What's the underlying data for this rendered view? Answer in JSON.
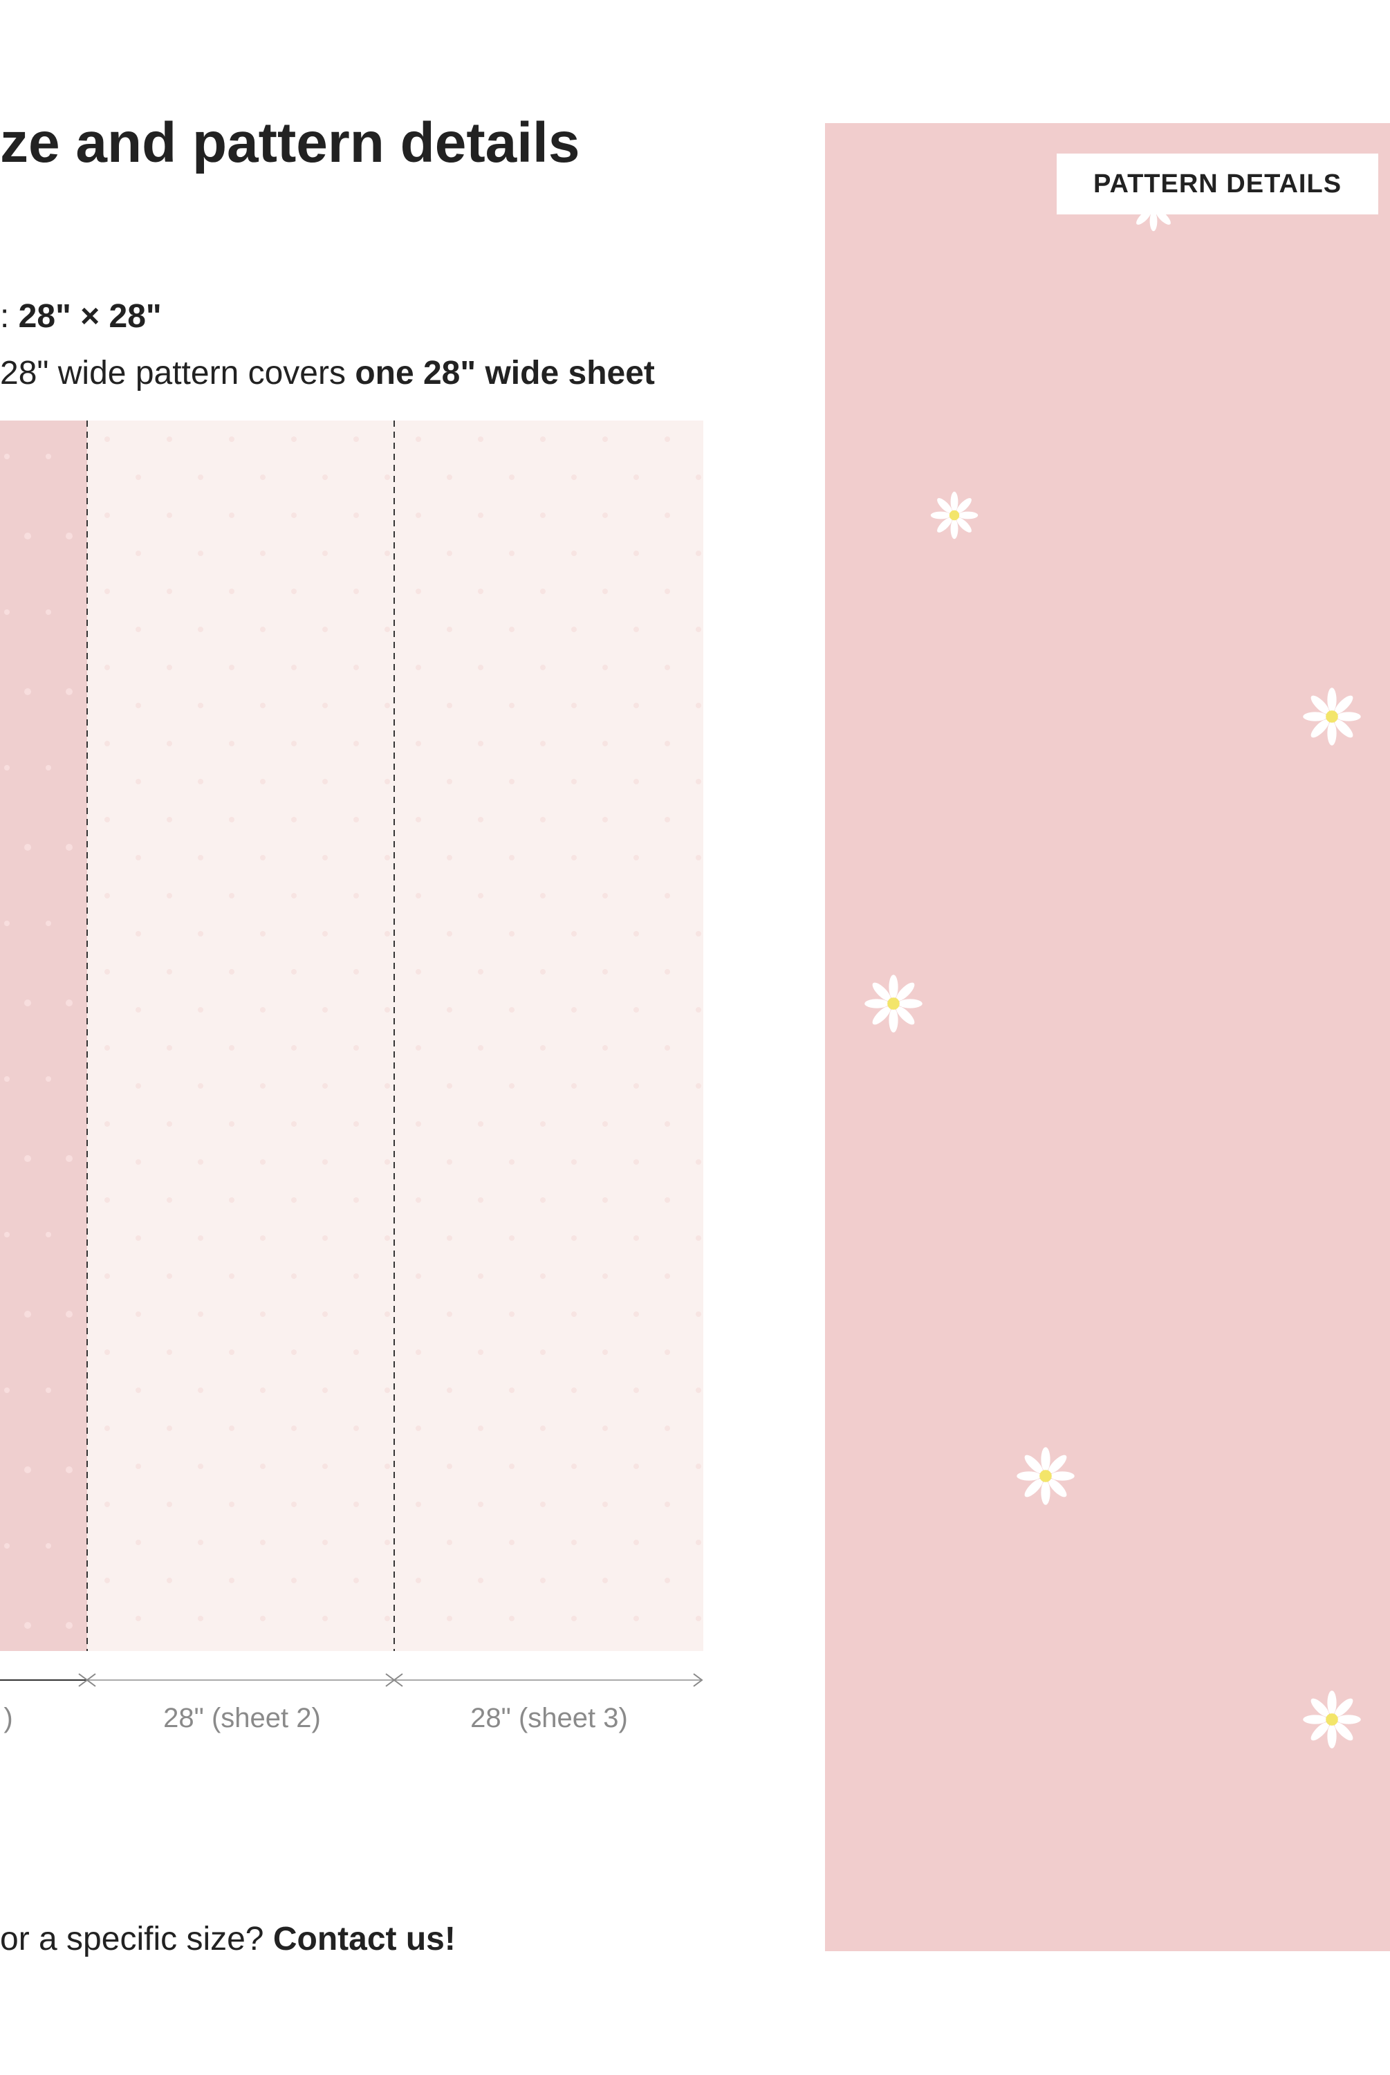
{
  "header": {
    "title": "ze and pattern details"
  },
  "size_line": {
    "prefix": ": ",
    "bold": "28\" × 28\""
  },
  "coverage": {
    "text": "28\" wide pattern covers ",
    "bold": "one 28\" wide sheet"
  },
  "preview": {
    "labels": [
      ")",
      "28\" (sheet 2)",
      "28\" (sheet 3)"
    ]
  },
  "contact": {
    "text": "or a specific size? ",
    "link": "Contact us!"
  },
  "pattern_button": {
    "label": "PATTERN DETAILS"
  }
}
